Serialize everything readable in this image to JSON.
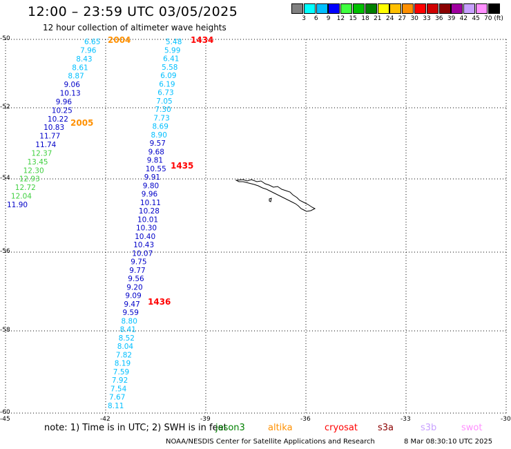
{
  "title": "12:00 – 23:59 UTC 03/05/2025",
  "subtitle": "12 hour collection of altimeter wave heights",
  "legend": {
    "labels": [
      "3",
      "6",
      "9",
      "12",
      "15",
      "18",
      "21",
      "24",
      "27",
      "30",
      "33",
      "36",
      "39",
      "42",
      "45",
      "70 (ft)"
    ],
    "colors": [
      "#808080",
      "#00ffff",
      "#00bfff",
      "#0000ff",
      "#40ff40",
      "#00c000",
      "#008000",
      "#ffff00",
      "#ffc000",
      "#ff9000",
      "#ff0000",
      "#d00000",
      "#8b0000",
      "#a000a0",
      "#c8a0ff",
      "#ff90ff",
      "#000000"
    ]
  },
  "axes": {
    "lat_labels": [
      "-50",
      "-52",
      "-54",
      "-56",
      "-58",
      "-60"
    ],
    "lon_labels": [
      "-45",
      "-42",
      "-39",
      "-36",
      "-33",
      "-30"
    ]
  },
  "tracks": [
    {
      "name": "track-left",
      "timestamps": [
        {
          "text": "2004",
          "color": "#ff9000"
        },
        {
          "text": "2005",
          "color": "#ff9000"
        }
      ],
      "values": [
        "6.65",
        "7.96",
        "8.43",
        "8.61",
        "8.87",
        "9.06",
        "10.13",
        "9.96",
        "10.25",
        "10.22",
        "10.83",
        "11.77",
        "11.74",
        "12.37",
        "13.45",
        "12.30",
        "12.93",
        "12.72",
        "12.04",
        "11.90"
      ]
    },
    {
      "name": "track-right",
      "timestamps": [
        {
          "text": "1434",
          "color": "#ff0000"
        },
        {
          "text": "1435",
          "color": "#ff0000"
        },
        {
          "text": "1436",
          "color": "#ff0000"
        }
      ],
      "values": [
        "5.48",
        "5.99",
        "6.41",
        "5.58",
        "6.09",
        "6.19",
        "6.73",
        "7.05",
        "7.30",
        "7.73",
        "8.69",
        "8.90",
        "9.57",
        "9.68",
        "9.81",
        "10.55",
        "9.91",
        "9.80",
        "9.96",
        "10.11",
        "10.28",
        "10.01",
        "10.30",
        "10.40",
        "10.43",
        "10.07",
        "9.75",
        "9.77",
        "9.56",
        "9.20",
        "9.09",
        "9.47",
        "9.59",
        "8.80",
        "8.41",
        "8.52",
        "8.04",
        "7.82",
        "8.19",
        "7.59",
        "7.92",
        "7.54",
        "7.67",
        "8.11"
      ]
    }
  ],
  "note": "note:  1) Time is in UTC;  2) SWH is in feet",
  "satellites": [
    {
      "name": "jason3",
      "color": "#008000"
    },
    {
      "name": "altika",
      "color": "#ff9000"
    },
    {
      "name": "cryosat",
      "color": "#ff0000"
    },
    {
      "name": "s3a",
      "color": "#8b0000"
    },
    {
      "name": "s3b",
      "color": "#c8a0ff"
    },
    {
      "name": "swot",
      "color": "#ff90ff"
    }
  ],
  "credit": "NOAA/NESDIS Center for Satellite Applications and Research",
  "timestamp": "8 Mar 08:30:10 UTC 2025"
}
